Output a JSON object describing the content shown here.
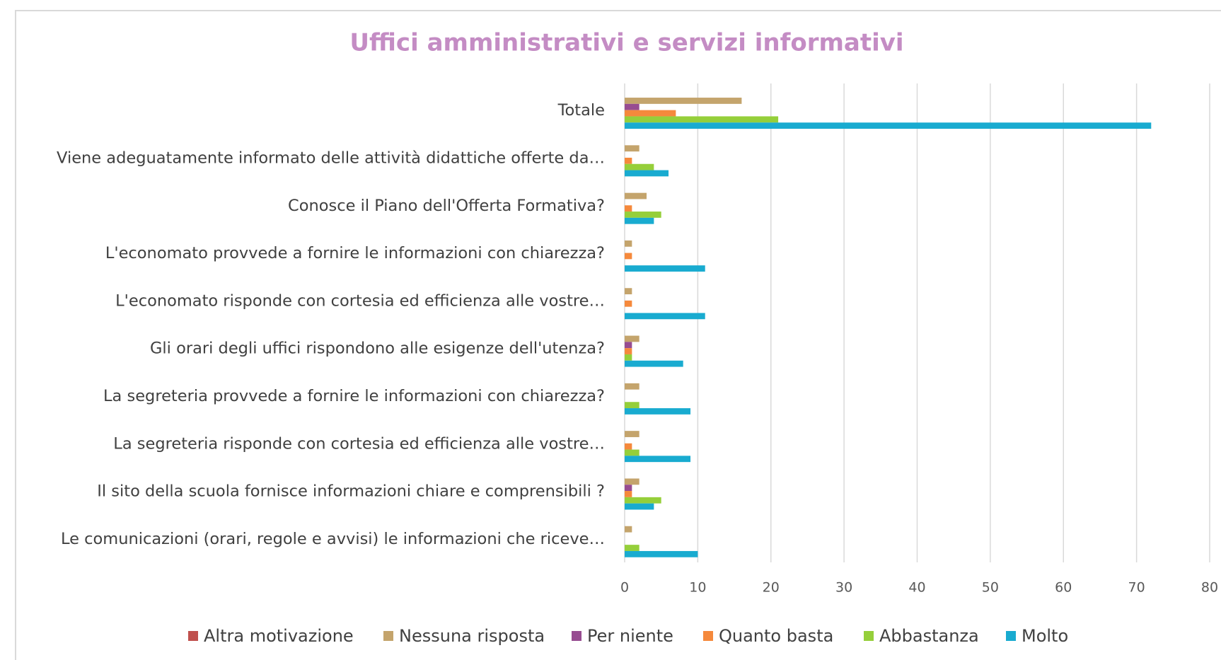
{
  "chart_data": {
    "type": "barh",
    "title": "Uffici amministrativi e servizi informativi",
    "categories": [
      "Totale",
      "Viene adeguatamente informato delle attività  didattiche offerte da…",
      "Conosce il Piano dell'Offerta Formativa?",
      "L'economato provvede a fornire le informazioni con chiarezza?",
      "L'economato risponde con cortesia ed efficienza alle vostre…",
      "Gli orari degli uffici rispondono alle esigenze dell'utenza?",
      "La segreteria provvede a fornire le informazioni con chiarezza?",
      "La segreteria risponde con cortesia ed efficienza alle vostre…",
      "Il sito della scuola fornisce informazioni chiare e comprensibili ?",
      "Le comunicazioni (orari, regole e avvisi) le informazioni che riceve…"
    ],
    "series": [
      {
        "name": "Altra motivazione",
        "color": "#c0504d",
        "values": [
          0,
          0,
          0,
          0,
          0,
          0,
          0,
          0,
          0,
          0
        ]
      },
      {
        "name": "Nessuna risposta",
        "color": "#c4a46c",
        "values": [
          16,
          2,
          3,
          1,
          1,
          2,
          2,
          2,
          2,
          1
        ]
      },
      {
        "name": "Per niente",
        "color": "#974c91",
        "values": [
          2,
          0,
          0,
          0,
          0,
          1,
          0,
          0,
          1,
          0
        ]
      },
      {
        "name": "Quanto basta",
        "color": "#f5893c",
        "values": [
          7,
          1,
          1,
          1,
          1,
          1,
          0,
          1,
          1,
          0
        ]
      },
      {
        "name": "Abbastanza",
        "color": "#95cf3a",
        "values": [
          21,
          4,
          5,
          0,
          0,
          1,
          2,
          2,
          5,
          2
        ]
      },
      {
        "name": "Molto",
        "color": "#19abd0",
        "values": [
          72,
          6,
          4,
          11,
          11,
          8,
          9,
          9,
          4,
          10
        ]
      }
    ],
    "xlim": [
      0,
      80
    ],
    "xticks": [
      0,
      10,
      20,
      30,
      40,
      50,
      60,
      70,
      80
    ],
    "grid": true,
    "legend": "bottom"
  }
}
